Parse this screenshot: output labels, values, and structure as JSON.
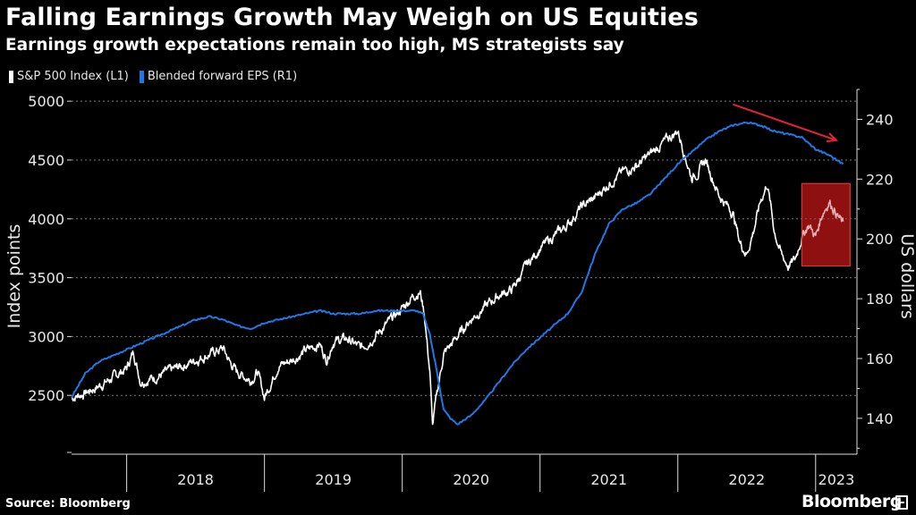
{
  "header": {
    "title": "Falling Earnings Growth May Weigh on US Equities",
    "subtitle": "Earnings growth expectations remain too high, MS strategists say"
  },
  "footer": {
    "source": "Source: Bloomberg",
    "brand": "Bloomberg"
  },
  "colors": {
    "background": "#000000",
    "sp500": "#ffffff",
    "eps": "#1e78e6",
    "arrow": "#e8213b",
    "highlight": "#7a0a0a",
    "grid": "#7a7a7a"
  },
  "chart_data": {
    "type": "line",
    "title": "Falling Earnings Growth May Weigh on US Equities",
    "subtitle": "Earnings growth expectations remain too high, MS strategists say",
    "xlabel": "",
    "ylabel_left": "Index points",
    "ylabel_right": "US dollars",
    "x_range": [
      2017.6,
      2023.3
    ],
    "ylim_left": [
      2000,
      5100
    ],
    "ylim_right": [
      128,
      250
    ],
    "yticks_left": [
      "2500",
      "3000",
      "3500",
      "4000",
      "4500",
      "5000"
    ],
    "yticks_right": [
      "140",
      "160",
      "180",
      "200",
      "220",
      "240"
    ],
    "yticks_left_values": [
      2500,
      3000,
      3500,
      4000,
      4500,
      5000
    ],
    "yticks_right_values": [
      140,
      160,
      180,
      200,
      220,
      240
    ],
    "x_categories": [
      "2018",
      "2019",
      "2020",
      "2021",
      "2022",
      "2023"
    ],
    "legend": [
      "S&P 500 Index (L1)",
      "Blended forward EPS (R1)"
    ],
    "legend_position": "top-left",
    "grid": true,
    "series": [
      {
        "name": "S&P 500 Index (L1)",
        "axis": "left",
        "x": [
          2017.6,
          2017.7,
          2017.8,
          2017.9,
          2018.0,
          2018.05,
          2018.1,
          2018.2,
          2018.3,
          2018.4,
          2018.5,
          2018.6,
          2018.7,
          2018.75,
          2018.8,
          2018.9,
          2018.95,
          2019.0,
          2019.1,
          2019.2,
          2019.3,
          2019.4,
          2019.45,
          2019.5,
          2019.6,
          2019.7,
          2019.8,
          2019.9,
          2020.0,
          2020.08,
          2020.13,
          2020.16,
          2020.2,
          2020.22,
          2020.25,
          2020.3,
          2020.4,
          2020.5,
          2020.6,
          2020.7,
          2020.8,
          2020.9,
          2021.0,
          2021.1,
          2021.2,
          2021.3,
          2021.4,
          2021.5,
          2021.6,
          2021.7,
          2021.75,
          2021.8,
          2021.9,
          2022.0,
          2022.05,
          2022.1,
          2022.15,
          2022.2,
          2022.3,
          2022.4,
          2022.45,
          2022.5,
          2022.55,
          2022.6,
          2022.65,
          2022.7,
          2022.75,
          2022.8,
          2022.85,
          2022.9,
          2022.95,
          2023.0,
          2023.05,
          2023.1,
          2023.15,
          2023.2
        ],
        "values": [
          2480,
          2520,
          2580,
          2650,
          2730,
          2870,
          2620,
          2650,
          2700,
          2750,
          2800,
          2850,
          2900,
          2780,
          2700,
          2630,
          2700,
          2480,
          2750,
          2800,
          2880,
          2940,
          2800,
          2960,
          2980,
          2900,
          3000,
          3120,
          3240,
          3350,
          3380,
          3200,
          2700,
          2240,
          2500,
          2850,
          3000,
          3150,
          3250,
          3350,
          3400,
          3600,
          3750,
          3850,
          3950,
          4100,
          4180,
          4300,
          4400,
          4450,
          4500,
          4550,
          4650,
          4750,
          4550,
          4350,
          4400,
          4500,
          4200,
          4050,
          3800,
          3700,
          3900,
          4150,
          4300,
          3900,
          3700,
          3600,
          3650,
          3850,
          3950,
          3850,
          4050,
          4150,
          4050,
          3950
        ]
      },
      {
        "name": "Blended forward EPS (R1)",
        "axis": "right",
        "x": [
          2017.6,
          2017.7,
          2017.8,
          2017.9,
          2018.0,
          2018.1,
          2018.2,
          2018.3,
          2018.4,
          2018.5,
          2018.6,
          2018.7,
          2018.8,
          2018.9,
          2019.0,
          2019.1,
          2019.2,
          2019.3,
          2019.4,
          2019.5,
          2019.6,
          2019.7,
          2019.8,
          2019.9,
          2020.0,
          2020.1,
          2020.15,
          2020.2,
          2020.25,
          2020.3,
          2020.35,
          2020.4,
          2020.5,
          2020.6,
          2020.7,
          2020.8,
          2020.9,
          2021.0,
          2021.1,
          2021.2,
          2021.3,
          2021.4,
          2021.5,
          2021.6,
          2021.7,
          2021.8,
          2021.9,
          2022.0,
          2022.1,
          2022.2,
          2022.3,
          2022.4,
          2022.5,
          2022.6,
          2022.7,
          2022.8,
          2022.9,
          2023.0,
          2023.1,
          2023.2
        ],
        "values": [
          147,
          155,
          159,
          161,
          163,
          165,
          167,
          169,
          171,
          173,
          174,
          173,
          171,
          170,
          172,
          173,
          174,
          175,
          176,
          175,
          175,
          175,
          176,
          176,
          176,
          176,
          175,
          168,
          156,
          143,
          140,
          138,
          141,
          146,
          152,
          158,
          163,
          167,
          171,
          175,
          182,
          195,
          205,
          210,
          212,
          215,
          220,
          225,
          229,
          233,
          236,
          238,
          239,
          238,
          236,
          235,
          234,
          230,
          228,
          225
        ]
      }
    ],
    "annotations": [
      {
        "type": "arrow",
        "from": [
          2022.4,
          245
        ],
        "to": [
          2023.15,
          233
        ],
        "description": "downward trend arrow"
      },
      {
        "type": "highlight",
        "x_range": [
          2022.9,
          2023.25
        ],
        "y_range_left": [
          3600,
          4300
        ]
      }
    ]
  }
}
